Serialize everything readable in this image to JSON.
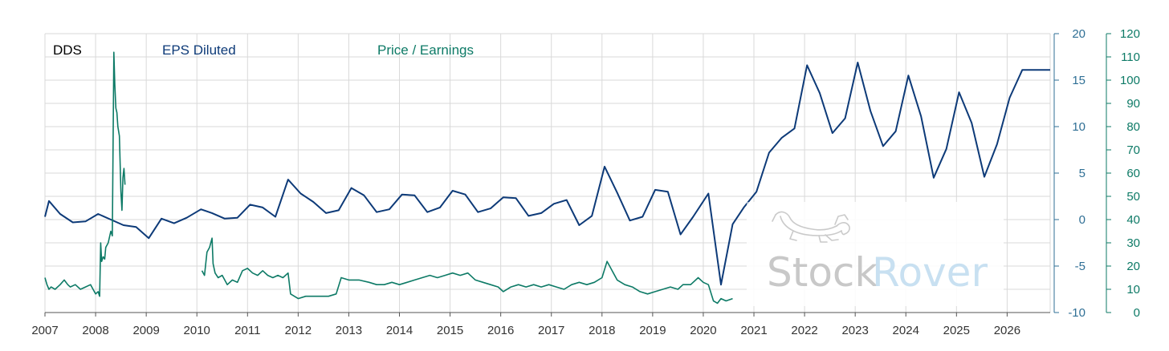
{
  "chart_data": {
    "type": "line",
    "ticker": "DDS",
    "x_range": [
      2007,
      2026.85
    ],
    "x_tick_labels": [
      "2007",
      "2008",
      "2009",
      "2010",
      "2011",
      "2012",
      "2013",
      "2014",
      "2015",
      "2016",
      "2017",
      "2018",
      "2019",
      "2020",
      "2021",
      "2022",
      "2023",
      "2024",
      "2025",
      "2026"
    ],
    "y_left": {
      "range": [
        -10,
        20
      ],
      "ticks": [
        "20",
        "15",
        "10",
        "5",
        "0",
        "-5",
        "-10"
      ]
    },
    "y_right": {
      "range": [
        0,
        120
      ],
      "ticks": [
        "120",
        "110",
        "100",
        "90",
        "80",
        "70",
        "60",
        "50",
        "40",
        "30",
        "20",
        "10",
        "0"
      ]
    },
    "grid": true,
    "series": [
      {
        "name": "EPS Diluted",
        "axis": "left",
        "color": "#0d3a78",
        "points": [
          [
            2007.0,
            0.3
          ],
          [
            2007.08,
            2.0
          ],
          [
            2007.3,
            0.6
          ],
          [
            2007.55,
            -0.3
          ],
          [
            2007.8,
            -0.2
          ],
          [
            2008.05,
            0.6
          ],
          [
            2008.3,
            0.0
          ],
          [
            2008.55,
            -0.6
          ],
          [
            2008.8,
            -0.8
          ],
          [
            2009.05,
            -2.0
          ],
          [
            2009.3,
            0.1
          ],
          [
            2009.55,
            -0.4
          ],
          [
            2009.8,
            0.2
          ],
          [
            2010.08,
            1.1
          ],
          [
            2010.3,
            0.7
          ],
          [
            2010.55,
            0.1
          ],
          [
            2010.8,
            0.2
          ],
          [
            2011.05,
            1.6
          ],
          [
            2011.3,
            1.3
          ],
          [
            2011.55,
            0.3
          ],
          [
            2011.8,
            4.3
          ],
          [
            2012.05,
            2.8
          ],
          [
            2012.3,
            1.9
          ],
          [
            2012.55,
            0.7
          ],
          [
            2012.8,
            1.0
          ],
          [
            2013.05,
            3.4
          ],
          [
            2013.3,
            2.6
          ],
          [
            2013.55,
            0.8
          ],
          [
            2013.8,
            1.1
          ],
          [
            2014.05,
            2.7
          ],
          [
            2014.3,
            2.6
          ],
          [
            2014.55,
            0.8
          ],
          [
            2014.8,
            1.3
          ],
          [
            2015.05,
            3.1
          ],
          [
            2015.3,
            2.7
          ],
          [
            2015.55,
            0.8
          ],
          [
            2015.8,
            1.2
          ],
          [
            2016.05,
            2.4
          ],
          [
            2016.3,
            2.3
          ],
          [
            2016.55,
            0.4
          ],
          [
            2016.8,
            0.7
          ],
          [
            2017.05,
            1.7
          ],
          [
            2017.3,
            2.1
          ],
          [
            2017.55,
            -0.6
          ],
          [
            2017.8,
            0.4
          ],
          [
            2018.05,
            5.7
          ],
          [
            2018.3,
            2.9
          ],
          [
            2018.55,
            -0.1
          ],
          [
            2018.8,
            0.3
          ],
          [
            2019.05,
            3.2
          ],
          [
            2019.3,
            3.0
          ],
          [
            2019.55,
            -1.6
          ],
          [
            2019.8,
            0.3
          ],
          [
            2020.1,
            2.8
          ],
          [
            2020.35,
            -7.0
          ],
          [
            2020.58,
            -0.5
          ],
          [
            2020.8,
            1.3
          ],
          [
            2021.05,
            3.0
          ],
          [
            2021.3,
            7.2
          ],
          [
            2021.55,
            8.8
          ],
          [
            2021.8,
            9.8
          ],
          [
            2022.05,
            16.6
          ],
          [
            2022.3,
            13.6
          ],
          [
            2022.55,
            9.3
          ],
          [
            2022.8,
            10.9
          ],
          [
            2023.05,
            16.9
          ],
          [
            2023.3,
            11.7
          ],
          [
            2023.55,
            7.9
          ],
          [
            2023.8,
            9.5
          ],
          [
            2024.05,
            15.5
          ],
          [
            2024.3,
            11.1
          ],
          [
            2024.55,
            4.5
          ],
          [
            2024.8,
            7.6
          ],
          [
            2025.05,
            13.7
          ],
          [
            2025.3,
            10.4
          ],
          [
            2025.55,
            4.6
          ],
          [
            2025.8,
            8.1
          ],
          [
            2026.05,
            13.1
          ],
          [
            2026.3,
            16.1
          ],
          [
            2026.55,
            16.1
          ],
          [
            2026.85,
            16.1
          ]
        ]
      },
      {
        "name": "Price / Earnings",
        "axis": "right",
        "color": "#0d7a66",
        "segments": [
          [
            [
              2007.0,
              15
            ],
            [
              2007.04,
              12
            ],
            [
              2007.08,
              10
            ],
            [
              2007.12,
              11
            ],
            [
              2007.2,
              10
            ],
            [
              2007.3,
              12
            ],
            [
              2007.38,
              14
            ],
            [
              2007.45,
              12
            ],
            [
              2007.5,
              11
            ],
            [
              2007.6,
              12
            ],
            [
              2007.7,
              10
            ],
            [
              2007.8,
              11
            ],
            [
              2007.9,
              12
            ],
            [
              2007.95,
              10
            ],
            [
              2008.0,
              8
            ],
            [
              2008.05,
              9
            ],
            [
              2008.08,
              7
            ],
            [
              2008.1,
              30
            ],
            [
              2008.12,
              22
            ],
            [
              2008.15,
              24
            ],
            [
              2008.18,
              23
            ],
            [
              2008.2,
              28
            ],
            [
              2008.25,
              30
            ],
            [
              2008.3,
              35
            ],
            [
              2008.33,
              33
            ],
            [
              2008.36,
              112
            ],
            [
              2008.38,
              98
            ],
            [
              2008.4,
              88
            ],
            [
              2008.42,
              86
            ],
            [
              2008.44,
              80
            ],
            [
              2008.47,
              76
            ],
            [
              2008.5,
              52
            ],
            [
              2008.52,
              44
            ],
            [
              2008.54,
              58
            ],
            [
              2008.56,
              62
            ],
            [
              2008.58,
              55
            ]
          ],
          [
            [
              2010.1,
              18
            ],
            [
              2010.15,
              16
            ],
            [
              2010.2,
              26
            ],
            [
              2010.25,
              28
            ],
            [
              2010.3,
              32
            ],
            [
              2010.32,
              21
            ],
            [
              2010.36,
              17
            ],
            [
              2010.42,
              15
            ],
            [
              2010.5,
              16
            ],
            [
              2010.6,
              12
            ],
            [
              2010.7,
              14
            ],
            [
              2010.8,
              13
            ],
            [
              2010.9,
              18
            ],
            [
              2011.0,
              19
            ],
            [
              2011.1,
              17
            ],
            [
              2011.2,
              16
            ],
            [
              2011.3,
              18
            ],
            [
              2011.4,
              16
            ],
            [
              2011.5,
              15
            ],
            [
              2011.6,
              16
            ],
            [
              2011.7,
              15
            ],
            [
              2011.8,
              17
            ],
            [
              2011.85,
              8
            ],
            [
              2012.0,
              6
            ],
            [
              2012.15,
              7
            ],
            [
              2012.3,
              7
            ],
            [
              2012.45,
              7
            ],
            [
              2012.6,
              7
            ],
            [
              2012.75,
              8
            ],
            [
              2012.85,
              15
            ],
            [
              2013.0,
              14
            ],
            [
              2013.2,
              14
            ],
            [
              2013.4,
              13
            ],
            [
              2013.55,
              12
            ],
            [
              2013.7,
              12
            ],
            [
              2013.85,
              13
            ],
            [
              2014.0,
              12
            ],
            [
              2014.15,
              13
            ],
            [
              2014.3,
              14
            ],
            [
              2014.45,
              15
            ],
            [
              2014.6,
              16
            ],
            [
              2014.75,
              15
            ],
            [
              2014.9,
              16
            ],
            [
              2015.05,
              17
            ],
            [
              2015.2,
              16
            ],
            [
              2015.35,
              17
            ],
            [
              2015.5,
              14
            ],
            [
              2015.65,
              13
            ],
            [
              2015.8,
              12
            ],
            [
              2015.95,
              11
            ],
            [
              2016.05,
              9
            ],
            [
              2016.2,
              11
            ],
            [
              2016.35,
              12
            ],
            [
              2016.5,
              11
            ],
            [
              2016.65,
              12
            ],
            [
              2016.8,
              11
            ],
            [
              2016.95,
              12
            ],
            [
              2017.1,
              11
            ],
            [
              2017.25,
              10
            ],
            [
              2017.4,
              12
            ],
            [
              2017.55,
              13
            ],
            [
              2017.7,
              12
            ],
            [
              2017.85,
              13
            ],
            [
              2018.0,
              15
            ],
            [
              2018.1,
              22
            ],
            [
              2018.15,
              20
            ],
            [
              2018.2,
              18
            ],
            [
              2018.3,
              14
            ],
            [
              2018.45,
              12
            ],
            [
              2018.6,
              11
            ],
            [
              2018.75,
              9
            ],
            [
              2018.9,
              8
            ],
            [
              2019.05,
              9
            ],
            [
              2019.2,
              10
            ],
            [
              2019.35,
              11
            ],
            [
              2019.5,
              10
            ],
            [
              2019.6,
              12
            ],
            [
              2019.75,
              12
            ],
            [
              2019.9,
              15
            ],
            [
              2020.0,
              13
            ],
            [
              2020.1,
              12
            ],
            [
              2020.2,
              5
            ],
            [
              2020.28,
              4
            ],
            [
              2020.35,
              6
            ],
            [
              2020.45,
              5
            ],
            [
              2020.58,
              6
            ]
          ]
        ]
      }
    ]
  }
}
